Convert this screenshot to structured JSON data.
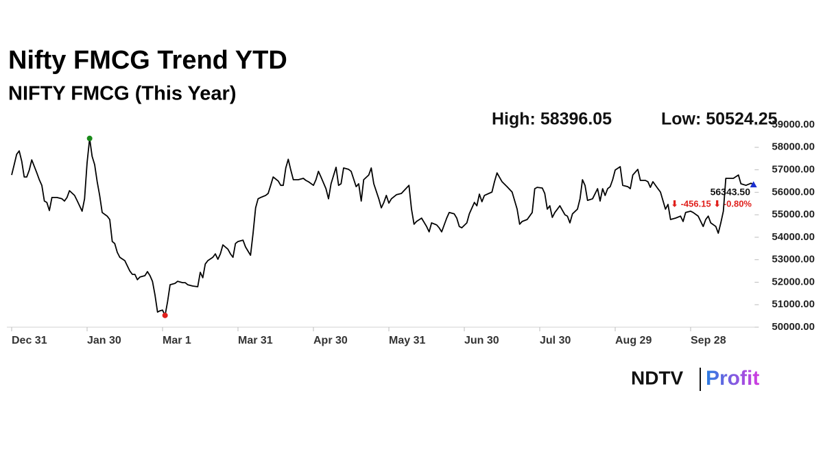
{
  "chart_data": {
    "type": "line",
    "title": "Nifty FMCG Trend YTD",
    "subtitle": "NIFTY FMCG (This Year)",
    "high_label": "High: 58396.05",
    "low_label": "Low: 50524.25",
    "last_label": "56343.50",
    "change_label": "⬇ -456.15 ⬇ -0.80%",
    "color": "#000000",
    "high_color": "#1a8a1a",
    "low_color": "#e0201c",
    "last_color": "#1a2fd0",
    "xlim": [
      0,
      296
    ],
    "ylim": [
      50000,
      59000
    ],
    "xticks": [
      {
        "value": 0,
        "label": "Dec 31"
      },
      {
        "value": 30,
        "label": "Jan 30"
      },
      {
        "value": 60,
        "label": "Mar 1"
      },
      {
        "value": 90,
        "label": "Mar 31"
      },
      {
        "value": 120,
        "label": "Apr 30"
      },
      {
        "value": 150,
        "label": "May 31"
      },
      {
        "value": 180,
        "label": "Jun 30"
      },
      {
        "value": 210,
        "label": "Jul 30"
      },
      {
        "value": 240,
        "label": "Aug 29"
      },
      {
        "value": 270,
        "label": "Sep 28"
      }
    ],
    "yticks": [
      {
        "value": 50000,
        "label": "50000.00"
      },
      {
        "value": 51000,
        "label": "51000.00"
      },
      {
        "value": 52000,
        "label": "52000.00"
      },
      {
        "value": 53000,
        "label": "53000.00"
      },
      {
        "value": 54000,
        "label": "54000.00"
      },
      {
        "value": 55000,
        "label": "55000.00"
      },
      {
        "value": 56000,
        "label": "56000.00"
      },
      {
        "value": 57000,
        "label": "57000.00"
      },
      {
        "value": 58000,
        "label": "58000.00"
      },
      {
        "value": 59000,
        "label": "59000.00"
      }
    ],
    "x": [
      0,
      1,
      2,
      3,
      4,
      5,
      6,
      7,
      8,
      10,
      11,
      12,
      13,
      14,
      15,
      16,
      18,
      20,
      21,
      22,
      23,
      25,
      26,
      27,
      28,
      29,
      30,
      31,
      32,
      33,
      34,
      35,
      36,
      38,
      39,
      40,
      41,
      42,
      43,
      45,
      47,
      48,
      49,
      50,
      51,
      53,
      54,
      55,
      56,
      57,
      58,
      59,
      60,
      61,
      62,
      63,
      65,
      66,
      68,
      69,
      70,
      72,
      74,
      75,
      76,
      77,
      78,
      80,
      81,
      82,
      83,
      84,
      86,
      87,
      88,
      89,
      90,
      92,
      93,
      95,
      96,
      97,
      98,
      99,
      101,
      102,
      103,
      104,
      106,
      107,
      108,
      109,
      110,
      111,
      112,
      114,
      116,
      117,
      118,
      120,
      121,
      122,
      123,
      125,
      126,
      127,
      129,
      130,
      131,
      132,
      134,
      135,
      137,
      138,
      139,
      140,
      142,
      143,
      144,
      146,
      147,
      148,
      149,
      150,
      151,
      153,
      155,
      156,
      158,
      159,
      160,
      161,
      163,
      165,
      166,
      167,
      169,
      170,
      171,
      173,
      174,
      176,
      177,
      178,
      179,
      181,
      182,
      184,
      185,
      186,
      187,
      188,
      191,
      192,
      193,
      195,
      197,
      199,
      201,
      202,
      203,
      205,
      207,
      208,
      209,
      211,
      212,
      213,
      214,
      215,
      216,
      217,
      218,
      220,
      221,
      222,
      223,
      225,
      226,
      227,
      228,
      229,
      231,
      233,
      234,
      235,
      236,
      237,
      238,
      239,
      240,
      242,
      243,
      245,
      246,
      247,
      249,
      250,
      252,
      253,
      254,
      255,
      257,
      258,
      260,
      261,
      262,
      264,
      266,
      267,
      268,
      270,
      271,
      273,
      275,
      276,
      277,
      278,
      280,
      281,
      282,
      283,
      284,
      285,
      287,
      289,
      290,
      292,
      294,
      295
    ],
    "values": [
      56770,
      57230,
      57690,
      57840,
      57380,
      56680,
      56680,
      56990,
      57440,
      56860,
      56560,
      56310,
      55610,
      55550,
      55190,
      55770,
      55770,
      55710,
      55610,
      55770,
      56070,
      55860,
      55640,
      55400,
      55160,
      55710,
      57320,
      58396.05,
      57600,
      57230,
      56470,
      55860,
      55100,
      54940,
      54790,
      53810,
      53720,
      53330,
      53110,
      52960,
      52500,
      52350,
      52350,
      52110,
      52230,
      52290,
      52470,
      52290,
      52040,
      51430,
      50670,
      50730,
      50760,
      50524.25,
      51130,
      51890,
      51950,
      52040,
      51980,
      51980,
      51890,
      51830,
      51800,
      52440,
      52200,
      52810,
      52960,
      53110,
      53260,
      53020,
      53260,
      53660,
      53470,
      53260,
      53110,
      53720,
      53810,
      53870,
      53570,
      53200,
      54180,
      55310,
      55710,
      55770,
      55860,
      55950,
      56310,
      56680,
      56500,
      56310,
      56310,
      57080,
      57470,
      56990,
      56560,
      56560,
      56620,
      56530,
      56470,
      56310,
      56560,
      56930,
      56680,
      56160,
      55710,
      56380,
      57110,
      56310,
      56380,
      57080,
      57020,
      56930,
      56250,
      56380,
      55610,
      56560,
      56770,
      57080,
      56380,
      55710,
      55310,
      55550,
      55860,
      55520,
      55710,
      55890,
      55950,
      56070,
      56310,
      55250,
      54580,
      54700,
      54850,
      54480,
      54240,
      54640,
      54550,
      54420,
      54240,
      54850,
      55100,
      55040,
      54850,
      54480,
      54420,
      54640,
      55040,
      55550,
      55400,
      55920,
      55580,
      55860,
      56010,
      56470,
      56860,
      56470,
      56250,
      56010,
      55250,
      54580,
      54700,
      54790,
      55100,
      56160,
      56220,
      56190,
      55950,
      55250,
      55400,
      54880,
      55100,
      55250,
      55400,
      55000,
      54940,
      54640,
      55040,
      55250,
      55710,
      56560,
      56310,
      55640,
      55710,
      56160,
      55610,
      56160,
      55860,
      56160,
      56250,
      56560,
      56990,
      57140,
      56310,
      56250,
      56160,
      56770,
      57020,
      56530,
      56530,
      56470,
      56220,
      56470,
      56160,
      56010,
      55250,
      55460,
      54790,
      54850,
      54940,
      54700,
      55100,
      55160,
      55100,
      54940,
      54480,
      54790,
      54940,
      54640,
      54480,
      54180,
      54640,
      55160,
      56620,
      56620,
      56620,
      56770,
      56380,
      56310,
      56400,
      56343.5
    ],
    "logo_left": "NDTV",
    "logo_right": "Profit"
  }
}
